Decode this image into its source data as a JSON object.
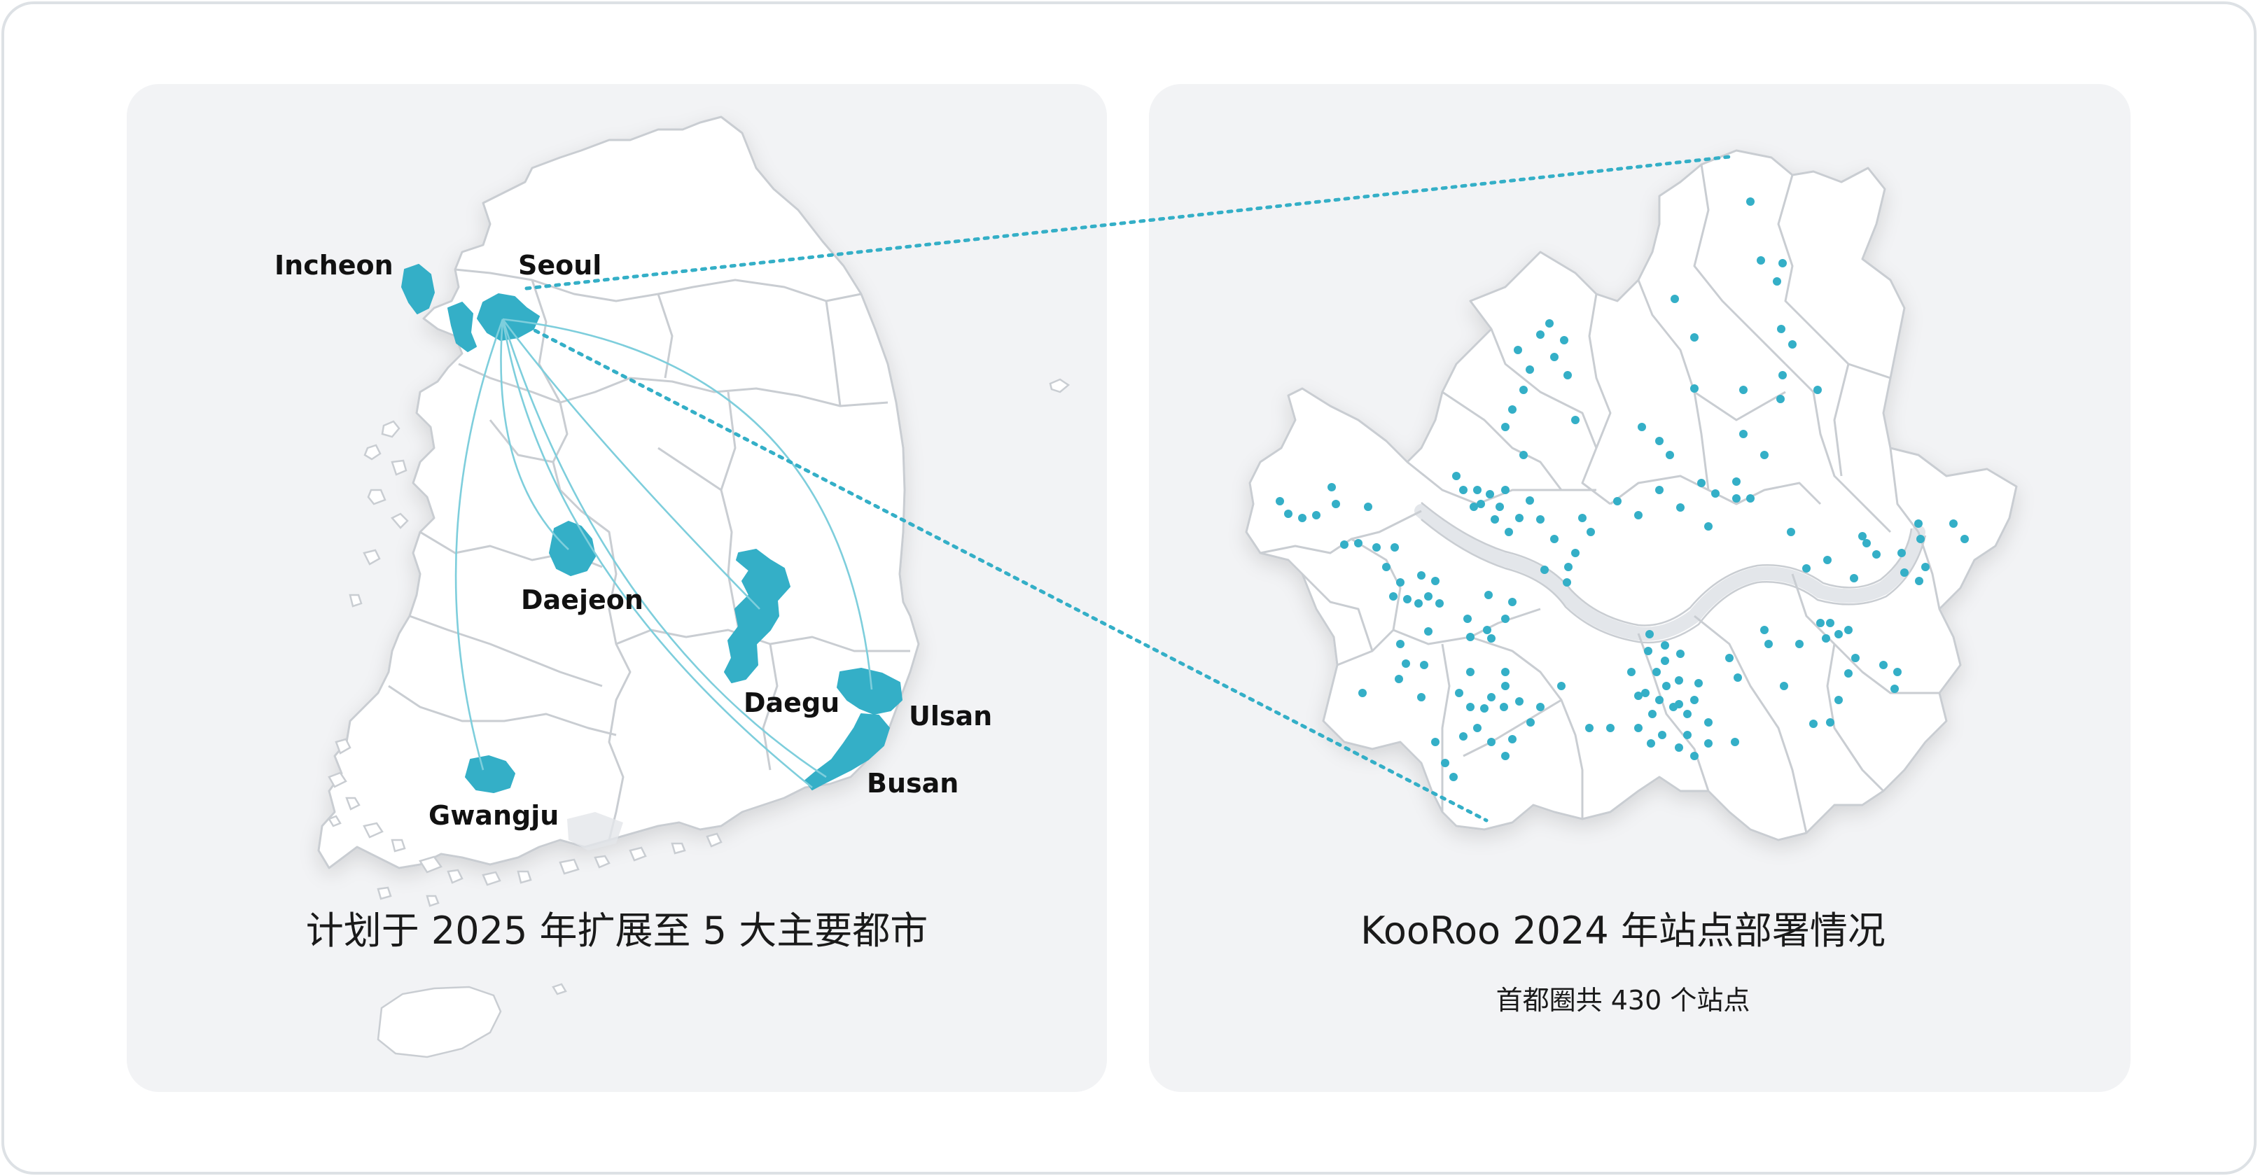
{
  "colors": {
    "accent": "#34AFC7",
    "route": "#7ECEDC",
    "panel": "#F2F3F5",
    "land": "#FFFFFF",
    "border": "#C9CDD2",
    "river": "#E3E6EA"
  },
  "left_panel": {
    "caption": "计划于 2025 年扩展至 5 大主要都市",
    "cities": {
      "incheon": "Incheon",
      "seoul": "Seoul",
      "daejeon": "Daejeon",
      "daegu": "Daegu",
      "ulsan": "Ulsan",
      "busan": "Busan",
      "gwangju": "Gwangju"
    }
  },
  "right_panel": {
    "title": "KooRoo 2024 年站点部署情况",
    "subtitle": "首都圈共 430 个站点"
  }
}
